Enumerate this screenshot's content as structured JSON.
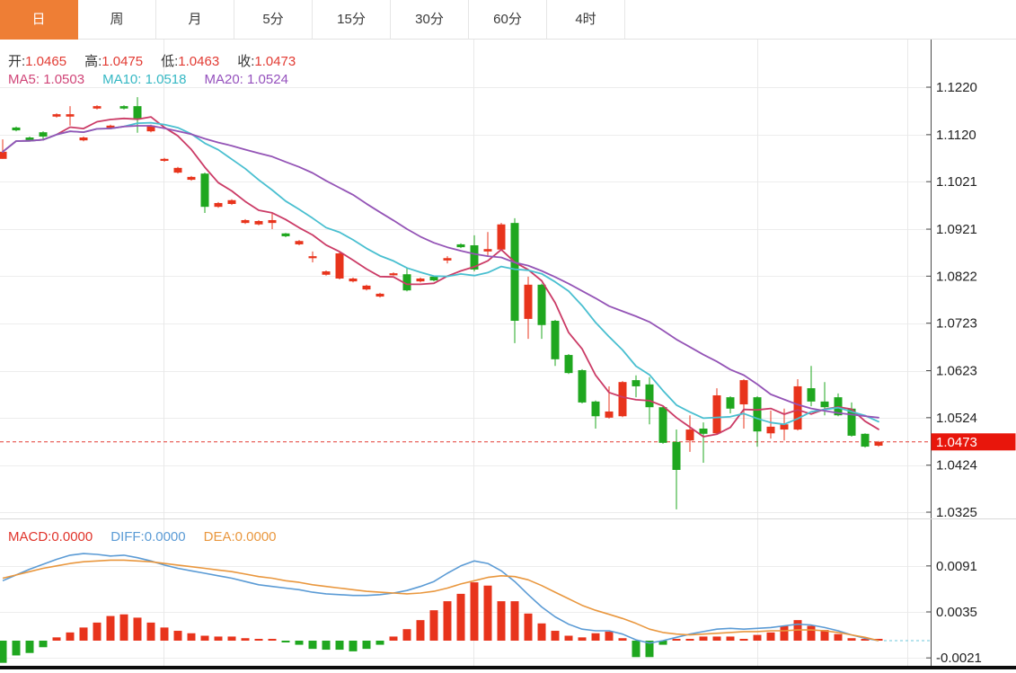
{
  "tabs": [
    {
      "label": "日",
      "active": true
    },
    {
      "label": "周",
      "active": false
    },
    {
      "label": "月",
      "active": false
    },
    {
      "label": "5分",
      "active": false
    },
    {
      "label": "15分",
      "active": false
    },
    {
      "label": "30分",
      "active": false
    },
    {
      "label": "60分",
      "active": false
    },
    {
      "label": "4时",
      "active": false
    }
  ],
  "tab_style": {
    "active_bg": "#ee7e35",
    "active_text": "#ffffff"
  },
  "main_legend": {
    "ohlc": [
      {
        "label": "开:",
        "value": "1.0465"
      },
      {
        "label": "高:",
        "value": "1.0475"
      },
      {
        "label": "低:",
        "value": "1.0463"
      },
      {
        "label": "收:",
        "value": "1.0473"
      }
    ],
    "ma": [
      {
        "label": "MA5:",
        "value": "1.0503",
        "color": "#d04578"
      },
      {
        "label": "MA10:",
        "value": "1.0518",
        "color": "#35b8c4"
      },
      {
        "label": "MA20:",
        "value": "1.0524",
        "color": "#9551bd"
      }
    ]
  },
  "macd_legend": {
    "items": [
      {
        "label": "MACD:",
        "value": "0.0000",
        "color": "#e0342b"
      },
      {
        "label": "DIFF:",
        "value": "0.0000",
        "color": "#5b9bd5"
      },
      {
        "label": "DEA:",
        "value": "0.0000",
        "color": "#e9973e"
      }
    ]
  },
  "chart_data": [
    {
      "type": "candlestick",
      "title": "price panel",
      "ylim": [
        1.0325,
        1.122
      ],
      "y_ticks": [
        "1.1220",
        "1.1120",
        "1.1021",
        "1.0921",
        "1.0822",
        "1.0723",
        "1.0623",
        "1.0524",
        "1.0424",
        "1.0325"
      ],
      "current_price": "1.0473",
      "up_color": "#e8341c",
      "down_color": "#1fa71f",
      "price_line_color": "#e23b33",
      "price_label_bg": "#e8160c",
      "grid": true,
      "legend_position": "top-left",
      "ma": [
        {
          "name": "MA5",
          "period": 5,
          "value": "1.0503",
          "color": "#cb3b66"
        },
        {
          "name": "MA10",
          "period": 10,
          "value": "1.0518",
          "color": "#49bfd0"
        },
        {
          "name": "MA20",
          "period": 20,
          "value": "1.0524",
          "color": "#9454b6"
        }
      ],
      "candles_format": [
        "open",
        "high",
        "low",
        "close"
      ],
      "candles": [
        [
          1.1069,
          1.111,
          1.1069,
          1.1084
        ],
        [
          1.1135,
          1.1137,
          1.1127,
          1.1129
        ],
        [
          1.1114,
          1.1116,
          1.1106,
          1.1108
        ],
        [
          1.1125,
          1.1127,
          1.111,
          1.1116
        ],
        [
          1.1158,
          1.1165,
          1.1156,
          1.1163
        ],
        [
          1.1158,
          1.118,
          1.1139,
          1.1163
        ],
        [
          1.1108,
          1.1116,
          1.1106,
          1.1114
        ],
        [
          1.1175,
          1.1182,
          1.1173,
          1.118
        ],
        [
          1.1133,
          1.1141,
          1.1131,
          1.1139
        ],
        [
          1.118,
          1.1182,
          1.1173,
          1.1175
        ],
        [
          1.118,
          1.1199,
          1.1124,
          1.1154
        ],
        [
          1.1127,
          1.1141,
          1.1125,
          1.1139
        ],
        [
          1.1065,
          1.1071,
          1.1063,
          1.1069
        ],
        [
          1.104,
          1.1052,
          1.1038,
          1.105
        ],
        [
          1.1025,
          1.1033,
          1.1023,
          1.1031
        ],
        [
          1.1038,
          1.104,
          1.0955,
          1.0968
        ],
        [
          1.0968,
          1.0978,
          1.0966,
          1.0976
        ],
        [
          1.0974,
          1.0984,
          1.0972,
          1.0982
        ],
        [
          1.0934,
          1.0942,
          1.0932,
          1.094
        ],
        [
          1.0931,
          1.094,
          1.0929,
          1.0938
        ],
        [
          1.0934,
          1.0955,
          1.0921,
          1.094
        ],
        [
          1.0912,
          1.0913,
          1.0904,
          1.0906
        ],
        [
          1.0889,
          1.0898,
          1.0887,
          1.0896
        ],
        [
          1.086,
          1.0874,
          1.0851,
          1.0864
        ],
        [
          1.0825,
          1.0834,
          1.0823,
          1.0832
        ],
        [
          1.0817,
          1.0872,
          1.0815,
          1.087
        ],
        [
          1.0811,
          1.0819,
          1.0809,
          1.0817
        ],
        [
          1.0794,
          1.0804,
          1.0792,
          1.0802
        ],
        [
          1.0779,
          1.0787,
          1.0777,
          1.0785
        ],
        [
          1.0825,
          1.083,
          1.0823,
          1.0828
        ],
        [
          1.0826,
          1.084,
          1.079,
          1.0792
        ],
        [
          1.0811,
          1.0819,
          1.0809,
          1.0817
        ],
        [
          1.0821,
          1.0823,
          1.0811,
          1.0813
        ],
        [
          1.0855,
          1.0864,
          1.0849,
          1.086
        ],
        [
          1.0889,
          1.0891,
          1.0881,
          1.0883
        ],
        [
          1.0887,
          1.0908,
          1.0832,
          1.0836
        ],
        [
          1.0874,
          1.0915,
          1.0864,
          1.0879
        ],
        [
          1.0878,
          1.0934,
          1.0876,
          1.0931
        ],
        [
          1.0934,
          1.0944,
          1.0681,
          1.0728
        ],
        [
          1.0732,
          1.0821,
          1.069,
          1.0804
        ],
        [
          1.0804,
          1.0806,
          1.069,
          1.0719
        ],
        [
          1.0728,
          1.073,
          1.0633,
          1.0647
        ],
        [
          1.0656,
          1.0658,
          1.0616,
          1.0618
        ],
        [
          1.0624,
          1.0626,
          1.0554,
          1.0556
        ],
        [
          1.0558,
          1.056,
          1.0501,
          1.0527
        ],
        [
          1.0524,
          1.059,
          1.0522,
          1.0537
        ],
        [
          1.0527,
          1.0601,
          1.0525,
          1.0599
        ],
        [
          1.0603,
          1.0613,
          1.0567,
          1.059
        ],
        [
          1.0594,
          1.0609,
          1.051,
          1.0546
        ],
        [
          1.0546,
          1.0548,
          1.0469,
          1.0471
        ],
        [
          1.0473,
          1.0499,
          1.0331,
          1.0414
        ],
        [
          1.0476,
          1.0529,
          1.0452,
          1.0499
        ],
        [
          1.0501,
          1.0514,
          1.0429,
          1.049
        ],
        [
          1.0491,
          1.0586,
          1.049,
          1.0571
        ],
        [
          1.0567,
          1.0569,
          1.0533,
          1.0543
        ],
        [
          1.0552,
          1.0605,
          1.0501,
          1.0603
        ],
        [
          1.0567,
          1.0569,
          1.0463,
          1.0495
        ],
        [
          1.0491,
          1.0539,
          1.048,
          1.0505
        ],
        [
          1.0499,
          1.0543,
          1.0476,
          1.051
        ],
        [
          1.0499,
          1.0605,
          1.0497,
          1.059
        ],
        [
          1.0586,
          1.0633,
          1.0548,
          1.0558
        ],
        [
          1.0558,
          1.0599,
          1.0529,
          1.0546
        ],
        [
          1.0567,
          1.0575,
          1.0527,
          1.0529
        ],
        [
          1.0543,
          1.0556,
          1.0484,
          1.0486
        ],
        [
          1.049,
          1.0491,
          1.0461,
          1.0463
        ],
        [
          1.0465,
          1.0475,
          1.0463,
          1.0473
        ]
      ]
    },
    {
      "type": "bar",
      "title": "MACD panel",
      "y_ticks": [
        "0.0091",
        "0.0035",
        "-0.0021"
      ],
      "up_color": "#e8341c",
      "down_color": "#1fa71f",
      "diff_color": "#5b9bd5",
      "dea_color": "#e9973e",
      "zero_ext_color": "#8ad2e2",
      "macd": [
        -0.0027,
        -0.0018,
        -0.0015,
        -0.0008,
        0.0004,
        0.001,
        0.0016,
        0.0022,
        0.003,
        0.0032,
        0.0028,
        0.0022,
        0.0016,
        0.0012,
        0.0009,
        0.0006,
        0.0005,
        0.0005,
        0.0003,
        0.0001,
        0.0,
        -0.0002,
        -0.0005,
        -0.001,
        -0.0011,
        -0.0011,
        -0.0013,
        -0.001,
        -0.0005,
        0.0005,
        0.0014,
        0.0025,
        0.0037,
        0.0048,
        0.0057,
        0.0071,
        0.0067,
        0.0048,
        0.0048,
        0.0033,
        0.0021,
        0.0012,
        0.0006,
        0.0004,
        0.0009,
        0.0011,
        0.0003,
        -0.002,
        -0.002,
        -0.0005,
        0.0,
        0.0,
        0.0005,
        0.0005,
        0.0005,
        0.0002,
        0.0007,
        0.001,
        0.0018,
        0.0025,
        0.0018,
        0.0013,
        0.0008,
        0.0003,
        0.0001,
        0.0
      ],
      "diff": [
        0.0073,
        0.008,
        0.0087,
        0.0093,
        0.0099,
        0.0104,
        0.0106,
        0.0105,
        0.0103,
        0.0104,
        0.0101,
        0.0097,
        0.0092,
        0.0088,
        0.0085,
        0.0082,
        0.0079,
        0.0076,
        0.0072,
        0.0068,
        0.0066,
        0.0064,
        0.0062,
        0.0059,
        0.0057,
        0.0056,
        0.0055,
        0.0055,
        0.0056,
        0.0058,
        0.0061,
        0.0066,
        0.0072,
        0.0082,
        0.0091,
        0.0097,
        0.0094,
        0.0085,
        0.0072,
        0.0056,
        0.0041,
        0.0029,
        0.002,
        0.0014,
        0.0012,
        0.0012,
        0.0008,
        0.0001,
        -0.0003,
        0.0,
        0.0004,
        0.0008,
        0.0011,
        0.0014,
        0.0015,
        0.0014,
        0.0015,
        0.0016,
        0.0018,
        0.002,
        0.0019,
        0.0016,
        0.0012,
        0.0007,
        0.0003,
        0.0
      ],
      "dea": [
        0.0076,
        0.008,
        0.0084,
        0.0088,
        0.0091,
        0.0094,
        0.0096,
        0.0097,
        0.0098,
        0.0098,
        0.0097,
        0.0096,
        0.0094,
        0.0092,
        0.009,
        0.0088,
        0.0086,
        0.0084,
        0.0081,
        0.0078,
        0.0076,
        0.0073,
        0.0071,
        0.0068,
        0.0066,
        0.0064,
        0.0062,
        0.006,
        0.0059,
        0.0058,
        0.0057,
        0.0058,
        0.006,
        0.0064,
        0.0069,
        0.0073,
        0.0077,
        0.0079,
        0.0078,
        0.0074,
        0.0067,
        0.0059,
        0.0051,
        0.0043,
        0.0037,
        0.0032,
        0.0027,
        0.0021,
        0.0014,
        0.001,
        0.0008,
        0.0007,
        0.0008,
        0.0009,
        0.001,
        0.0011,
        0.0011,
        0.0012,
        0.0012,
        0.0013,
        0.0013,
        0.0012,
        0.001,
        0.0007,
        0.0004,
        0.0
      ]
    }
  ]
}
